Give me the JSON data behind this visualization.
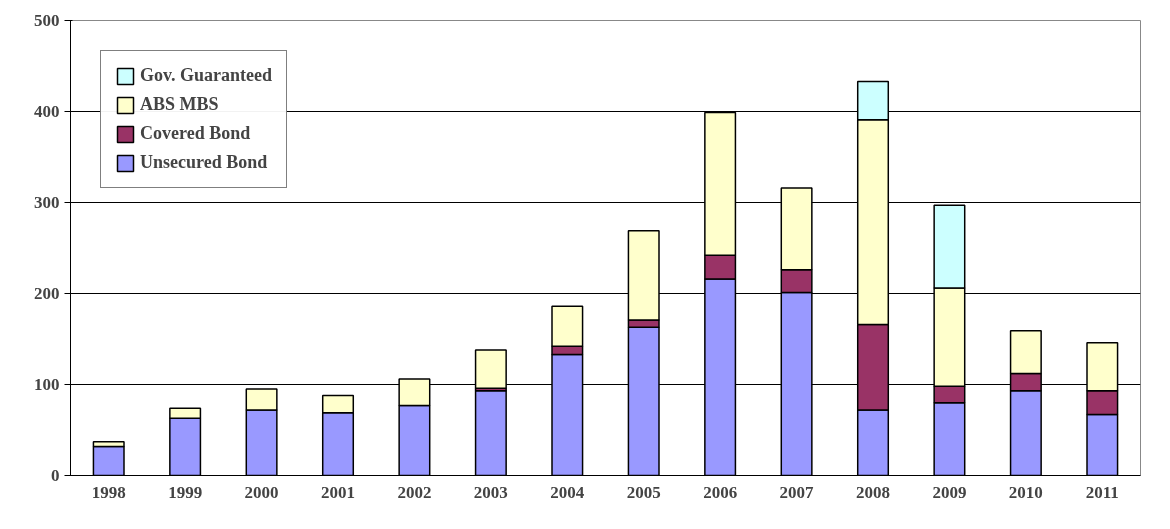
{
  "chart_data": {
    "type": "bar",
    "stacked": true,
    "categories": [
      "1998",
      "1999",
      "2000",
      "2001",
      "2002",
      "2003",
      "2004",
      "2005",
      "2006",
      "2007",
      "2008",
      "2009",
      "2010",
      "2011"
    ],
    "series": [
      {
        "name": "Unsecured Bond",
        "color": "#9999ff",
        "values": [
          32,
          63,
          72,
          69,
          77,
          93,
          133,
          163,
          216,
          201,
          72,
          80,
          93,
          67
        ]
      },
      {
        "name": "Covered Bond",
        "color": "#993366",
        "values": [
          null,
          null,
          null,
          null,
          null,
          3,
          9,
          8,
          26,
          25,
          94,
          18,
          19,
          26
        ]
      },
      {
        "name": "ABS MBS",
        "color": "#ffffcc",
        "values": [
          5,
          11,
          23,
          19,
          29,
          42,
          44,
          98,
          157,
          90,
          225,
          108,
          47,
          53
        ]
      },
      {
        "name": "Gov. Guaranteed",
        "color": "#ccffff",
        "values": [
          null,
          null,
          null,
          null,
          null,
          null,
          null,
          null,
          null,
          null,
          42,
          91,
          null,
          null
        ]
      }
    ],
    "ylim": [
      0,
      500
    ],
    "yticks": [
      0,
      100,
      200,
      300,
      400,
      500
    ],
    "grid": "y",
    "legend": "top left"
  }
}
